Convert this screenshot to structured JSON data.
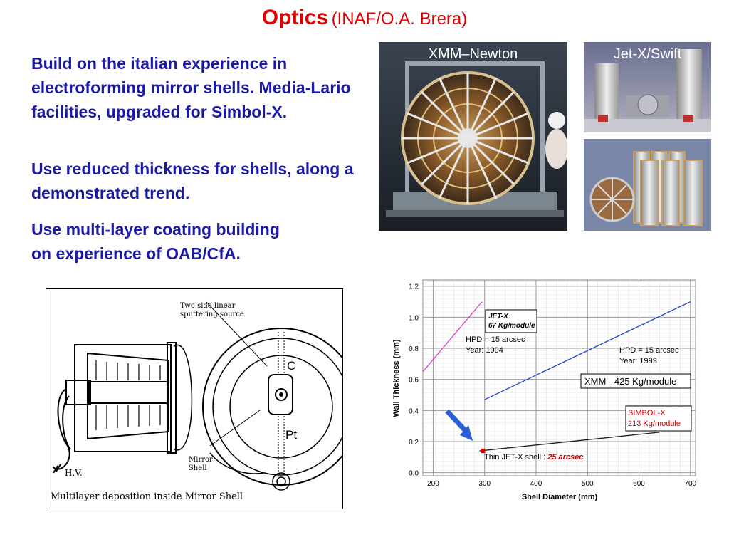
{
  "title": {
    "main": "Optics",
    "sub": "(INAF/O.A. Brera)"
  },
  "bullets": [
    "Build on the italian experience in electroforming mirror shells. Media-Lario facilities, upgraded for Simbol-X.",
    "Use reduced thickness for shells, along a demonstrated trend.",
    "Use multi-layer coating building on experience of OAB/CfA."
  ],
  "photos": {
    "xmm_caption": "XMM–Newton",
    "jetx_caption": "Jet-X/Swift"
  },
  "diagram": {
    "source_label_1": "Two side linear",
    "source_label_2": "sputtering source",
    "c_label": "C",
    "pt_label": "Pt",
    "mirror_label_1": "Mirror",
    "mirror_label_2": "Shell",
    "hv_label": "H.V.",
    "caption": "Multilayer deposition inside Mirror Shell"
  },
  "colors": {
    "title": "#e00000",
    "bullets": "#1a1aa6",
    "jetx_line": "#e040c0",
    "xmm_line": "#2040d0",
    "simbol_line": "#202020",
    "arrow": "#2a5ed8"
  },
  "chart_data": {
    "type": "line",
    "xlabel": "Shell Diameter (mm)",
    "ylabel": "Wall Thickness (mm)",
    "xlim": [
      180,
      710
    ],
    "ylim": [
      -0.02,
      1.24
    ],
    "xticks": [
      200,
      300,
      400,
      500,
      600,
      700
    ],
    "yticks": [
      0.0,
      0.2,
      0.4,
      0.6,
      0.8,
      1.0,
      1.2
    ],
    "grid": true,
    "series": [
      {
        "name": "JET-X",
        "x": [
          180,
          295
        ],
        "y": [
          0.65,
          1.1
        ]
      },
      {
        "name": "XMM",
        "x": [
          300,
          700
        ],
        "y": [
          0.47,
          1.1
        ]
      },
      {
        "name": "SIMBOL-X",
        "x": [
          290,
          640
        ],
        "y": [
          0.14,
          0.26
        ]
      }
    ],
    "points": [
      {
        "name": "Thin JET-X shell",
        "x": 297,
        "y": 0.14
      }
    ],
    "annotations": {
      "jetx_1": "JET-X",
      "jetx_2": "67 Kg/module",
      "jetx_hpd": "HPD = 15 arcsec",
      "jetx_year": "Year: 1994",
      "xmm_hpd": "HPD = 15 arcsec",
      "xmm_year": "Year: 1999",
      "xmm_box": "XMM  - 425 Kg/module",
      "simbol_1": "SIMBOL-X",
      "simbol_2": "213 Kg/module",
      "thin_prefix": "Thin JET-X shell : ",
      "thin_value": "25 arcsec"
    }
  }
}
